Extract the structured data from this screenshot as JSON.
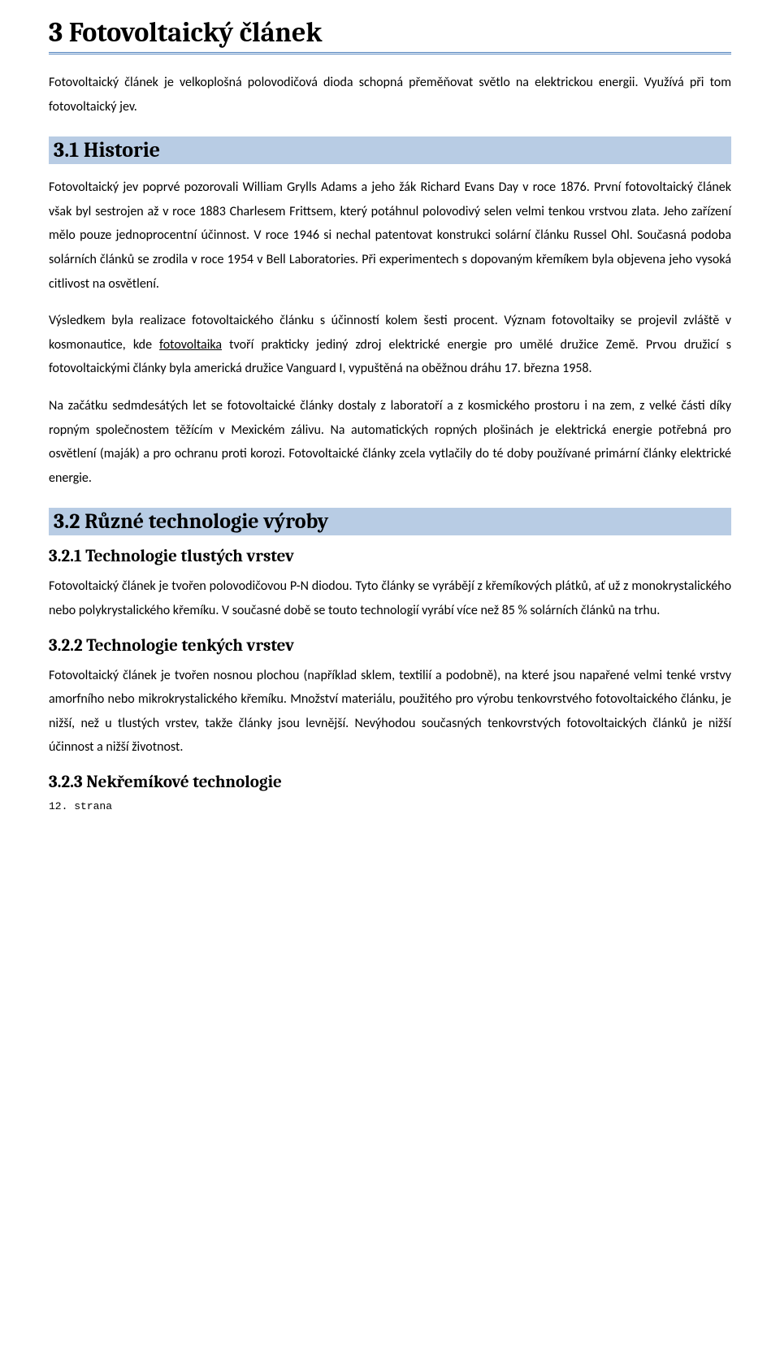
{
  "colors": {
    "accent_band_bg": "#b8cce4",
    "h1_underline": "#4f81bd",
    "text": "#000000",
    "page_bg": "#ffffff"
  },
  "h1": "3  Fotovoltaický článek",
  "p_intro": "Fotovoltaický článek je velkoplošná polovodičová dioda schopná přeměňovat světlo na elektrickou energii. Využívá při tom fotovoltaický jev.",
  "h2_31": "3.1    Historie",
  "p_31_a": "Fotovoltaický jev poprvé pozorovali William Grylls Adams a jeho žák Richard Evans Day v roce 1876. První fotovoltaický článek však byl sestrojen až v roce 1883 Charlesem Frittsem, který potáhnul polovodivý selen velmi tenkou vrstvou zlata. Jeho zařízení mělo pouze jednoprocentní účinnost. V roce 1946 si nechal patentovat konstrukci solární článku Russel Ohl. Současná podoba solárních článků se zrodila v roce 1954 v Bell Laboratories. Při experimentech s dopovaným křemíkem byla objevena jeho vysoká citlivost na osvětlení.",
  "p_31_b_pre": "Výsledkem byla realizace fotovoltaického článku s účinností kolem šesti procent. Význam fotovoltaiky se projevil zvláště v kosmonautice, kde ",
  "p_31_b_underline": "fotovoltaika",
  "p_31_b_post": " tvoří prakticky jediný zdroj elektrické energie pro umělé družice Země. Prvou družicí s fotovoltaickými články byla americká družice Vanguard I, vypuštěná na oběžnou dráhu 17. března 1958.",
  "p_31_c": "Na začátku sedmdesátých let se fotovoltaické články dostaly z laboratoří a z kosmického prostoru i na zem, z velké části díky ropným společnostem těžícím v Mexickém zálivu. Na automatických ropných plošinách je elektrická energie potřebná pro osvětlení (maják) a pro ochranu proti korozi. Fotovoltaické články zcela vytlačily do té doby používané primární články elektrické energie.",
  "h2_32": "3.2    Různé technologie výroby",
  "h3_321": "3.2.1   Technologie tlustých vrstev",
  "p_321": "Fotovoltaický článek je tvořen polovodičovou P-N diodou. Tyto články se vyrábějí z křemíkových plátků, ať už z monokrystalického nebo polykrystalického křemíku. V současné době se touto technologií vyrábí více než 85 % solárních článků na trhu.",
  "h3_322": "3.2.2  Technologie tenkých vrstev",
  "p_322": "Fotovoltaický článek je tvořen nosnou plochou (například sklem, textilií a podobně), na které jsou napařené velmi tenké vrstvy amorfního nebo mikrokrystalického křemíku. Množství materiálu, použitého pro výrobu tenkovrstvého fotovoltaického článku, je nižší, než u tlustých vrstev, takže články jsou levnější. Nevýhodou současných tenkovrstvých fotovoltaických článků je nižší účinnost a nižší životnost.",
  "h3_323": "3.2.3  Nekřemíkové technologie",
  "footer": "12. strana"
}
